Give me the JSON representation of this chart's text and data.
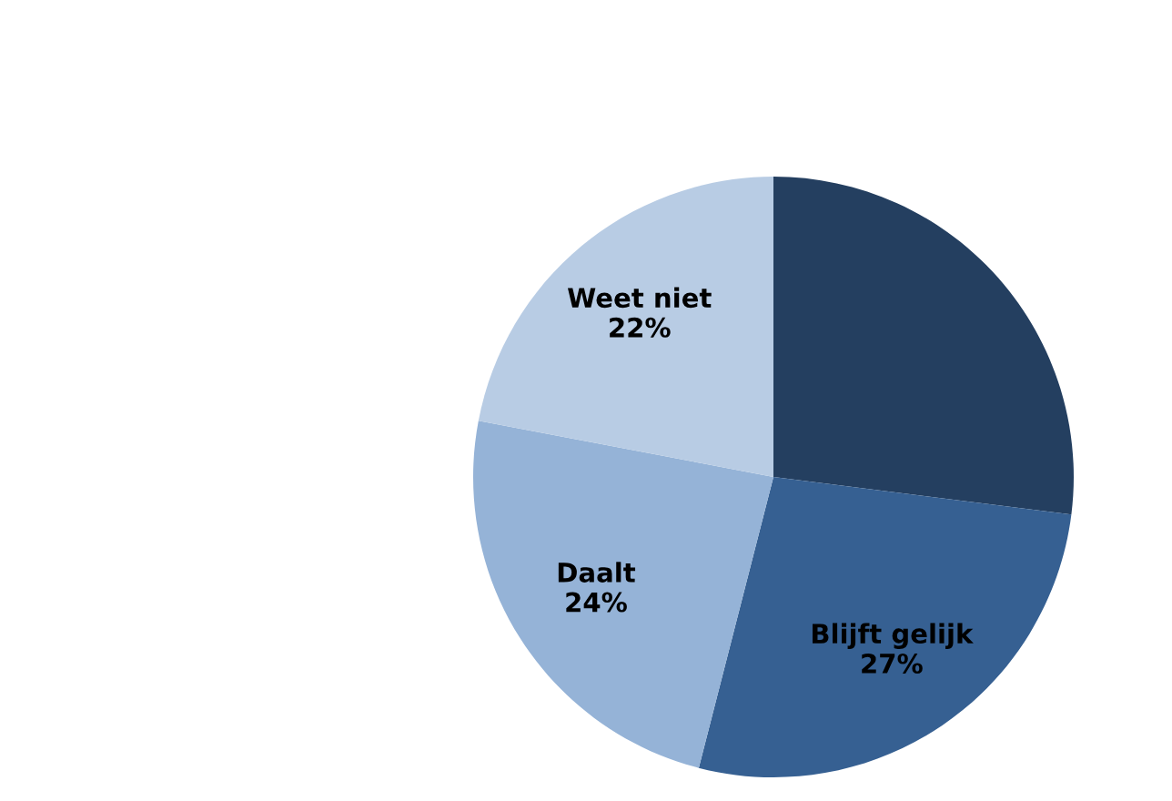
{
  "chart_data": {
    "type": "pie",
    "categories": [
      null,
      "Blijft gelijk",
      "Daalt",
      "Weet niet"
    ],
    "values": [
      27,
      27,
      24,
      22
    ],
    "colors": [
      "#243f60",
      "#366092",
      "#95b3d7",
      "#b8cce4"
    ],
    "value_labels": [
      null,
      "27%",
      "24%",
      "22%"
    ],
    "legend": false
  }
}
